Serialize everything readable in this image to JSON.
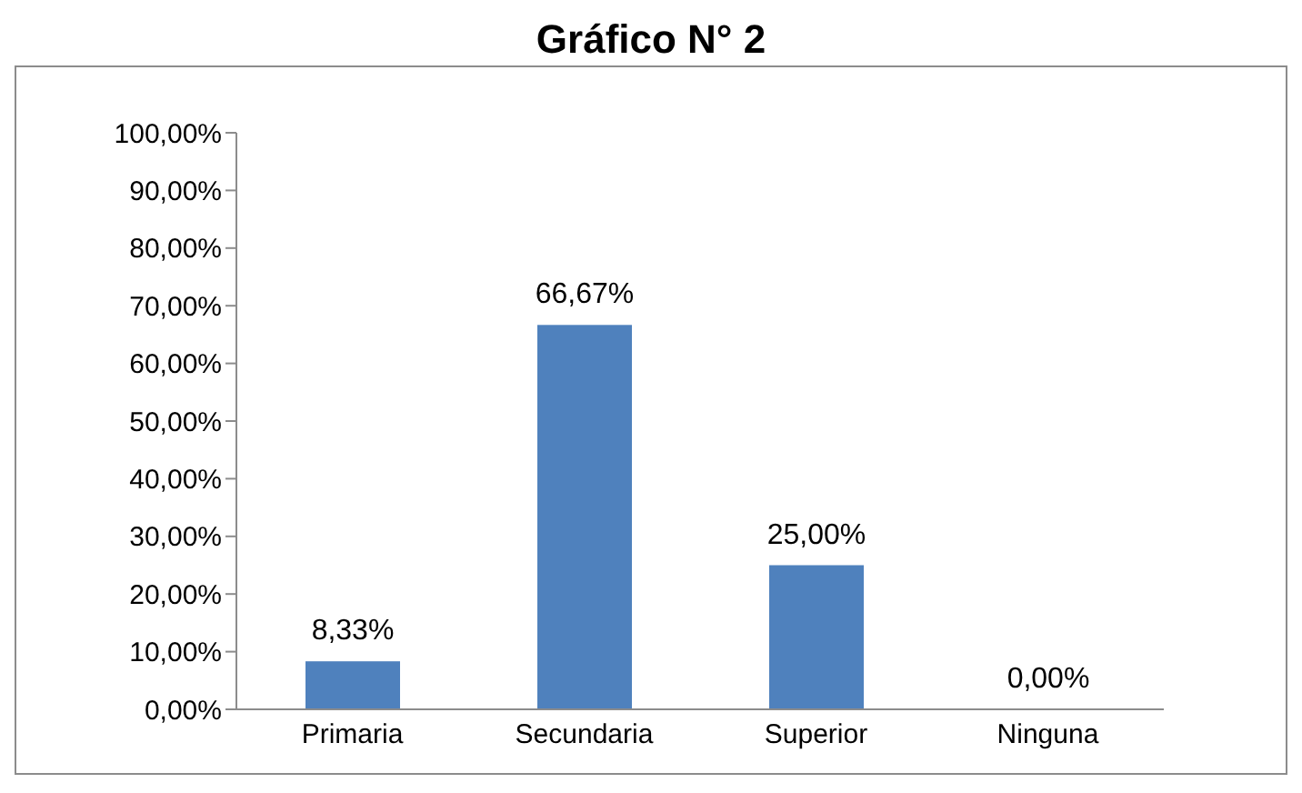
{
  "chart_data": {
    "type": "bar",
    "title": "Gráfico N° 2",
    "categories": [
      "Primaria",
      "Secundaria",
      "Superior",
      "Ninguna"
    ],
    "values": [
      8.33,
      66.67,
      25,
      0
    ],
    "color": "#4f81bd",
    "value_labels": [
      "8,33%",
      "66,67%",
      "25,00%",
      "0,00%"
    ],
    "ylim": [
      0,
      100
    ],
    "yticks": [
      {
        "value": 0,
        "label": "0,00%"
      },
      {
        "value": 10,
        "label": "10,00%"
      },
      {
        "value": 20,
        "label": "20,00%"
      },
      {
        "value": 30,
        "label": "30,00%"
      },
      {
        "value": 40,
        "label": "40,00%"
      },
      {
        "value": 50,
        "label": "50,00%"
      },
      {
        "value": 60,
        "label": "60,00%"
      },
      {
        "value": 70,
        "label": "70,00%"
      },
      {
        "value": 80,
        "label": "80,00%"
      },
      {
        "value": 90,
        "label": "90,00%"
      },
      {
        "value": 100,
        "label": "100,00%"
      }
    ]
  }
}
